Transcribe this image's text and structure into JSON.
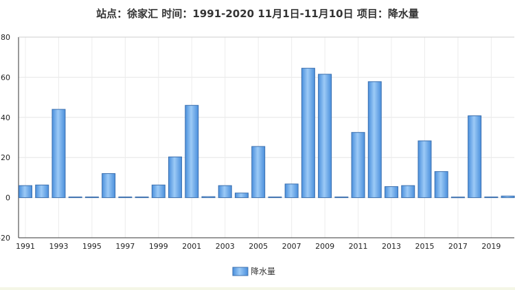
{
  "chart_data": {
    "type": "bar",
    "title": "站点：徐家汇 时间：1991-2020  11月1日-11月10日 项目：降水量",
    "xlabel": "",
    "ylabel": "",
    "ylim": [
      -20,
      80
    ],
    "yticks": [
      -20,
      0,
      20,
      40,
      60,
      80
    ],
    "xtick_labels": [
      "1991",
      "1993",
      "1995",
      "1997",
      "1999",
      "2001",
      "2003",
      "2005",
      "2007",
      "2009",
      "2011",
      "2013",
      "2015",
      "2017",
      "2019"
    ],
    "categories": [
      "1991",
      "1992",
      "1993",
      "1994",
      "1995",
      "1996",
      "1997",
      "1998",
      "1999",
      "2000",
      "2001",
      "2002",
      "2003",
      "2004",
      "2005",
      "2006",
      "2007",
      "2008",
      "2009",
      "2010",
      "2011",
      "2012",
      "2013",
      "2014",
      "2015",
      "2016",
      "2017",
      "2018",
      "2019",
      "2020"
    ],
    "series": [
      {
        "name": "降水量",
        "values": [
          6.0,
          6.3,
          44.0,
          0,
          0,
          12.0,
          0,
          0,
          6.3,
          20.3,
          46.0,
          0.5,
          6.0,
          2.3,
          25.5,
          0,
          6.8,
          64.5,
          61.5,
          0,
          32.5,
          57.8,
          5.5,
          6.0,
          28.3,
          13.0,
          0.3,
          40.8,
          0,
          0.8
        ]
      }
    ],
    "grid": true,
    "legend": "bottom-center"
  }
}
